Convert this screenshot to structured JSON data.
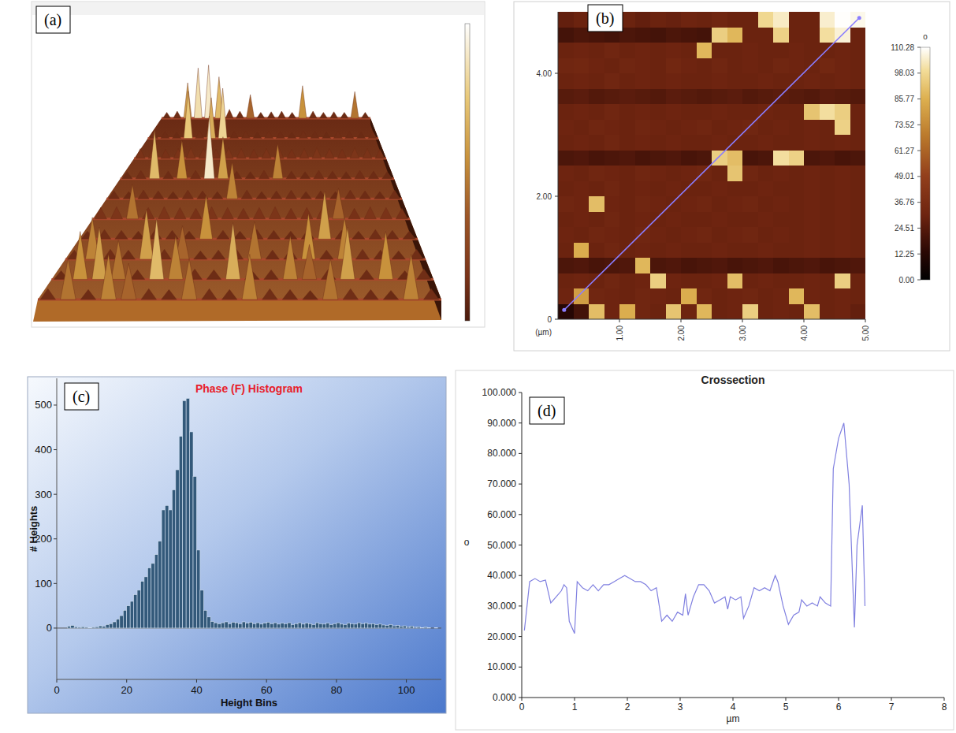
{
  "chart_data": [
    {
      "type": "surface",
      "panel_label": "(a)",
      "zlim": [
        0,
        100
      ],
      "cells": [
        [
          10,
          12,
          60,
          85,
          90,
          70,
          15,
          12,
          40,
          10,
          11,
          12,
          10,
          55,
          12,
          10,
          11,
          10,
          45,
          10
        ],
        [
          12,
          11,
          10,
          75,
          12,
          65,
          80,
          11,
          12,
          10,
          12,
          11,
          10,
          12,
          11,
          10,
          12,
          11,
          10,
          12
        ],
        [
          15,
          16,
          14,
          15,
          16,
          15,
          14,
          16,
          15,
          14,
          15,
          16,
          14,
          15,
          16,
          15,
          14,
          16,
          15,
          14
        ],
        [
          10,
          12,
          70,
          11,
          55,
          12,
          90,
          60,
          11,
          10,
          12,
          50,
          11,
          10,
          12,
          11,
          10,
          12,
          11,
          10
        ],
        [
          11,
          10,
          12,
          11,
          10,
          12,
          11,
          10,
          50,
          12,
          10,
          11,
          12,
          10,
          11,
          10,
          12,
          11,
          10,
          12
        ],
        [
          15,
          16,
          45,
          15,
          16,
          15,
          14,
          16,
          15,
          14,
          15,
          16,
          14,
          15,
          16,
          40,
          14,
          16,
          15,
          14
        ],
        [
          10,
          12,
          11,
          10,
          12,
          11,
          10,
          55,
          11,
          10,
          12,
          11,
          10,
          12,
          60,
          11,
          10,
          12,
          11,
          10
        ],
        [
          11,
          50,
          12,
          11,
          60,
          12,
          40,
          10,
          11,
          12,
          45,
          11,
          12,
          55,
          11,
          50,
          12,
          11,
          10,
          12
        ],
        [
          10,
          55,
          60,
          45,
          11,
          70,
          50,
          12,
          11,
          65,
          10,
          11,
          50,
          40,
          12,
          60,
          11,
          55,
          10,
          12
        ],
        [
          12,
          45,
          11,
          50,
          40,
          12,
          11,
          45,
          12,
          11,
          50,
          12,
          11,
          10,
          45,
          12,
          11,
          10,
          50,
          12
        ]
      ]
    },
    {
      "type": "heatmap",
      "panel_label": "(b)",
      "unit_label": "(µm)",
      "xlim": [
        0,
        5
      ],
      "ylim": [
        0,
        5
      ],
      "xticks": [
        {
          "value": 1,
          "label": "1.00"
        },
        {
          "value": 2,
          "label": "2.00"
        },
        {
          "value": 3,
          "label": "3.00"
        },
        {
          "value": 4,
          "label": "4.00"
        },
        {
          "value": 5,
          "label": "5.00"
        }
      ],
      "yticks": [
        0,
        {
          "value": 2,
          "label": "2.00"
        },
        {
          "value": 4,
          "label": "4.00"
        }
      ],
      "colorbar": {
        "label": "o",
        "range": [
          0,
          110.28
        ],
        "ticks": [
          {
            "value": 0,
            "label": "0.00"
          },
          12.25,
          24.51,
          36.76,
          49.01,
          61.27,
          73.52,
          85.77,
          98.03,
          110.28
        ]
      },
      "line": {
        "x": [
          0.1,
          4.9
        ],
        "y": [
          0.15,
          4.9
        ],
        "color": "#8a7dff"
      },
      "cells": [
        [
          28,
          30,
          29,
          31,
          30,
          28,
          30,
          29,
          31,
          30,
          32,
          30,
          30,
          98,
          104,
          30,
          30,
          105,
          110,
          108
        ],
        [
          20,
          22,
          21,
          20,
          22,
          21,
          20,
          22,
          21,
          20,
          95,
          88,
          30,
          30,
          96,
          30,
          30,
          100,
          106,
          30
        ],
        [
          30,
          31,
          30,
          32,
          30,
          31,
          30,
          31,
          30,
          88,
          30,
          30,
          31,
          30,
          30,
          31,
          30,
          30,
          31,
          30
        ],
        [
          32,
          33,
          31,
          30,
          32,
          31,
          30,
          33,
          31,
          30,
          32,
          30,
          31,
          30,
          32,
          31,
          30,
          33,
          31,
          30
        ],
        [
          30,
          31,
          30,
          32,
          30,
          31,
          30,
          31,
          30,
          30,
          31,
          30,
          30,
          31,
          30,
          30,
          31,
          30,
          31,
          30
        ],
        [
          25,
          26,
          24,
          25,
          26,
          25,
          24,
          26,
          25,
          24,
          25,
          26,
          24,
          25,
          26,
          25,
          24,
          26,
          25,
          24
        ],
        [
          30,
          31,
          30,
          32,
          30,
          31,
          30,
          31,
          30,
          30,
          31,
          30,
          30,
          31,
          30,
          30,
          92,
          100,
          95,
          30
        ],
        [
          31,
          30,
          32,
          31,
          30,
          32,
          31,
          30,
          31,
          32,
          30,
          31,
          32,
          30,
          31,
          30,
          31,
          30,
          96,
          30
        ],
        [
          30,
          31,
          30,
          32,
          30,
          31,
          30,
          31,
          30,
          30,
          31,
          30,
          30,
          31,
          30,
          30,
          31,
          30,
          31,
          30
        ],
        [
          22,
          23,
          21,
          22,
          23,
          21,
          22,
          23,
          21,
          22,
          95,
          90,
          21,
          22,
          100,
          96,
          22,
          23,
          21,
          22
        ],
        [
          31,
          30,
          32,
          31,
          30,
          32,
          31,
          30,
          31,
          32,
          30,
          92,
          32,
          30,
          31,
          30,
          31,
          30,
          31,
          30
        ],
        [
          30,
          31,
          30,
          32,
          30,
          31,
          30,
          31,
          30,
          30,
          31,
          30,
          30,
          31,
          30,
          30,
          31,
          30,
          31,
          30
        ],
        [
          32,
          31,
          90,
          31,
          30,
          32,
          31,
          30,
          31,
          32,
          30,
          31,
          32,
          30,
          31,
          30,
          31,
          30,
          31,
          30
        ],
        [
          30,
          31,
          30,
          32,
          30,
          31,
          30,
          31,
          30,
          30,
          31,
          30,
          30,
          31,
          30,
          30,
          31,
          30,
          31,
          30
        ],
        [
          31,
          30,
          32,
          31,
          30,
          32,
          31,
          30,
          31,
          32,
          30,
          31,
          32,
          30,
          31,
          30,
          31,
          30,
          31,
          30
        ],
        [
          30,
          85,
          30,
          32,
          30,
          31,
          30,
          31,
          30,
          30,
          31,
          30,
          30,
          31,
          30,
          30,
          31,
          30,
          31,
          30
        ],
        [
          22,
          23,
          21,
          22,
          23,
          88,
          22,
          23,
          21,
          22,
          23,
          21,
          22,
          23,
          21,
          22,
          23,
          21,
          22,
          23
        ],
        [
          30,
          31,
          30,
          32,
          30,
          31,
          95,
          31,
          30,
          30,
          31,
          90,
          30,
          31,
          30,
          30,
          31,
          30,
          95,
          30
        ],
        [
          31,
          80,
          32,
          31,
          30,
          32,
          31,
          30,
          85,
          32,
          30,
          31,
          32,
          30,
          31,
          88,
          31,
          30,
          31,
          30
        ],
        [
          12,
          20,
          90,
          31,
          85,
          32,
          30,
          92,
          31,
          88,
          30,
          31,
          95,
          30,
          31,
          30,
          90,
          30,
          31,
          28
        ]
      ]
    },
    {
      "type": "histogram",
      "panel_label": "(c)",
      "title": "Phase (F) Histogram",
      "x_label": "Height Bins",
      "y_label": "# Heights",
      "color": "#33597a",
      "xlim": [
        0,
        110
      ],
      "ylim": [
        -115,
        560
      ],
      "xticks": [
        0,
        20,
        40,
        60,
        80,
        100
      ],
      "yticks": [
        0,
        100,
        200,
        300,
        400,
        500
      ],
      "bins": [
        0,
        1,
        2,
        3,
        4,
        5,
        6,
        7,
        8,
        9,
        10,
        11,
        12,
        13,
        14,
        15,
        16,
        17,
        18,
        19,
        20,
        21,
        22,
        23,
        24,
        25,
        26,
        27,
        28,
        29,
        30,
        31,
        32,
        33,
        34,
        35,
        36,
        37,
        38,
        39,
        40,
        41,
        42,
        43,
        44,
        45,
        46,
        47,
        48,
        49,
        50,
        51,
        52,
        53,
        54,
        55,
        56,
        57,
        58,
        59,
        60,
        61,
        62,
        63,
        64,
        65,
        66,
        67,
        68,
        69,
        70,
        71,
        72,
        73,
        74,
        75,
        76,
        77,
        78,
        79,
        80,
        81,
        82,
        83,
        84,
        85,
        86,
        87,
        88,
        89,
        90,
        91,
        92,
        93,
        94,
        95,
        96,
        97,
        98,
        99,
        100,
        101,
        102,
        103,
        104,
        105,
        106,
        107,
        108,
        109,
        110
      ],
      "counts": [
        0,
        0,
        0,
        4,
        6,
        3,
        2,
        3,
        2,
        1,
        2,
        3,
        5,
        4,
        8,
        10,
        14,
        20,
        28,
        40,
        50,
        60,
        75,
        85,
        105,
        115,
        135,
        145,
        165,
        195,
        265,
        275,
        265,
        310,
        355,
        430,
        510,
        515,
        440,
        340,
        175,
        85,
        40,
        25,
        15,
        12,
        10,
        12,
        14,
        10,
        13,
        12,
        10,
        14,
        11,
        13,
        10,
        12,
        9,
        11,
        13,
        10,
        12,
        9,
        11,
        10,
        12,
        8,
        10,
        12,
        9,
        11,
        10,
        8,
        12,
        10,
        9,
        11,
        8,
        10,
        12,
        9,
        8,
        11,
        10,
        9,
        12,
        10,
        11,
        9,
        10,
        8,
        9,
        7,
        6,
        8,
        5,
        6,
        4,
        5,
        3,
        4,
        2,
        3,
        1,
        2,
        1,
        0,
        1,
        0
      ]
    },
    {
      "type": "line",
      "panel_label": "(d)",
      "title": "Crossection",
      "x_label": "µm",
      "y_label": "o",
      "color": "#8080e0",
      "grid": false,
      "xlim": [
        0,
        8
      ],
      "ylim": [
        0,
        100
      ],
      "xticks": [
        0,
        1,
        2,
        3,
        4,
        5,
        6,
        7,
        8
      ],
      "yticks": [
        {
          "value": 0,
          "label": "0.000"
        },
        {
          "value": 10,
          "label": "10.000"
        },
        {
          "value": 20,
          "label": "20.000"
        },
        {
          "value": 30,
          "label": "30.000"
        },
        {
          "value": 40,
          "label": "40.000"
        },
        {
          "value": 50,
          "label": "50.000"
        },
        {
          "value": 60,
          "label": "60.000"
        },
        {
          "value": 70,
          "label": "70.000"
        },
        {
          "value": 80,
          "label": "80.000"
        },
        {
          "value": 90,
          "label": "90.000"
        },
        {
          "value": 100,
          "label": "100.000"
        }
      ],
      "x": [
        0.05,
        0.15,
        0.25,
        0.35,
        0.45,
        0.55,
        0.65,
        0.75,
        0.8,
        0.85,
        0.9,
        1.0,
        1.05,
        1.15,
        1.25,
        1.35,
        1.45,
        1.55,
        1.65,
        1.75,
        1.85,
        1.95,
        2.05,
        2.15,
        2.25,
        2.35,
        2.45,
        2.55,
        2.65,
        2.75,
        2.85,
        2.95,
        3.05,
        3.1,
        3.15,
        3.25,
        3.35,
        3.45,
        3.55,
        3.65,
        3.75,
        3.85,
        3.9,
        3.95,
        4.05,
        4.15,
        4.2,
        4.3,
        4.4,
        4.5,
        4.6,
        4.7,
        4.8,
        4.85,
        4.95,
        5.05,
        5.15,
        5.25,
        5.3,
        5.4,
        5.5,
        5.6,
        5.65,
        5.75,
        5.85,
        5.9,
        6.0,
        6.1,
        6.2,
        6.3,
        6.35,
        6.45,
        6.5
      ],
      "values": [
        22,
        38,
        39,
        38,
        38.5,
        31,
        33,
        35,
        37,
        36,
        25,
        21,
        38,
        36,
        35,
        37,
        35,
        37,
        37,
        38,
        39,
        40,
        39,
        38,
        38,
        37,
        35,
        36,
        25,
        27,
        25,
        28,
        27,
        34,
        27,
        33,
        37,
        37,
        35,
        31,
        32,
        33,
        29,
        33,
        32,
        33,
        26,
        30,
        36,
        35,
        36,
        35,
        40,
        38,
        30,
        24,
        27,
        28,
        32,
        30,
        31,
        30,
        33,
        31,
        30,
        75,
        85,
        90,
        70,
        23,
        50,
        63,
        30
      ]
    }
  ]
}
